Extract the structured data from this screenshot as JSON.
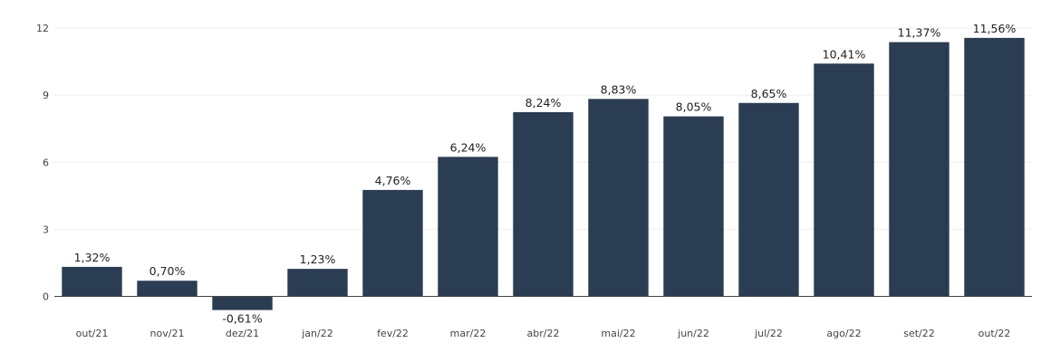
{
  "chart_data": {
    "type": "bar",
    "title": "",
    "xlabel": "",
    "ylabel": "",
    "categories": [
      "out/21",
      "nov/21",
      "dez/21",
      "jan/22",
      "fev/22",
      "mar/22",
      "abr/22",
      "mai/22",
      "jun/22",
      "jul/22",
      "ago/22",
      "set/22",
      "out/22"
    ],
    "values": [
      1.32,
      0.7,
      -0.61,
      1.23,
      4.76,
      6.24,
      8.24,
      8.83,
      8.05,
      8.65,
      10.41,
      11.37,
      11.56
    ],
    "data_labels": [
      "1,32%",
      "0,70%",
      "-0,61%",
      "1,23%",
      "4,76%",
      "6,24%",
      "8,24%",
      "8,83%",
      "8,05%",
      "8,65%",
      "10,41%",
      "11,37%",
      "11,56%"
    ],
    "y_ticks": [
      0,
      3,
      6,
      9,
      12
    ],
    "y_tick_labels": [
      "0",
      "3",
      "6",
      "9",
      "12"
    ],
    "ylim": [
      -0.6,
      12
    ],
    "grid": true,
    "legend": "none",
    "bar_color": "#2a3d52"
  }
}
